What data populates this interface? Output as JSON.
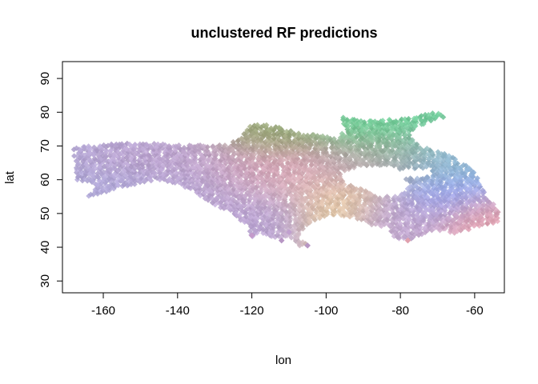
{
  "chart_data": {
    "type": "scatter",
    "title": "unclustered RF predictions",
    "xlabel": "lon",
    "ylabel": "lat",
    "xlim": [
      -171,
      -52
    ],
    "ylim": [
      26.5,
      95
    ],
    "x_ticks": [
      -160,
      -140,
      -120,
      -100,
      -80,
      -60
    ],
    "y_ticks": [
      30,
      40,
      50,
      60,
      70,
      80,
      90
    ],
    "x_tick_labels": [
      "-160",
      "-140",
      "-120",
      "-100",
      "-80",
      "-60"
    ],
    "y_tick_labels": [
      "30",
      "40",
      "50",
      "60",
      "70",
      "80",
      "90"
    ],
    "grid": false,
    "legend": "none",
    "marker": "diamond",
    "regions": [
      {
        "lon": [
          -167,
          -128
        ],
        "lat": [
          60,
          70.5
        ],
        "color": "#a9a6d6"
      },
      {
        "lon": [
          -160,
          -135
        ],
        "lat": [
          63,
          69
        ],
        "color": "#c79ec8"
      },
      {
        "lon": [
          -165,
          -150
        ],
        "lat": [
          55,
          61
        ],
        "color": "#b0a8d8"
      },
      {
        "lon": [
          -150,
          -125
        ],
        "lat": [
          53,
          62
        ],
        "color": "#b8a4d4"
      },
      {
        "lon": [
          -128,
          -108
        ],
        "lat": [
          48,
          56
        ],
        "color": "#b9a3d2"
      },
      {
        "lon": [
          -135,
          -100
        ],
        "lat": [
          60,
          70
        ],
        "color": "#d9a1b4"
      },
      {
        "lon": [
          -125,
          -105
        ],
        "lat": [
          70,
          76
        ],
        "color": "#93a66e"
      },
      {
        "lon": [
          -120,
          -95
        ],
        "lat": [
          55,
          62
        ],
        "color": "#d9b0b8"
      },
      {
        "lon": [
          -105,
          -90
        ],
        "lat": [
          49,
          58
        ],
        "color": "#e8cf9c"
      },
      {
        "lon": [
          -100,
          -80
        ],
        "lat": [
          61,
          67
        ],
        "color": "#c2a3b6"
      },
      {
        "lon": [
          -100,
          -70
        ],
        "lat": [
          74,
          80
        ],
        "color": "#6dcc96"
      },
      {
        "lon": [
          -95,
          -75
        ],
        "lat": [
          65,
          72
        ],
        "color": "#8ab58c"
      },
      {
        "lon": [
          -80,
          -60
        ],
        "lat": [
          60,
          70
        ],
        "color": "#8fb8d8"
      },
      {
        "lon": [
          -75,
          -60
        ],
        "lat": [
          52,
          58
        ],
        "color": "#9aa4f0"
      },
      {
        "lon": [
          -90,
          -70
        ],
        "lat": [
          47,
          54
        ],
        "color": "#c0a6cf"
      },
      {
        "lon": [
          -65,
          -53
        ],
        "lat": [
          46,
          52
        ],
        "color": "#e0a0ad"
      }
    ],
    "outliers": [
      {
        "lon": -112,
        "lat": 42,
        "color": "#b796c4"
      },
      {
        "lon": -105,
        "lat": 40.5,
        "color": "#b796c4"
      },
      {
        "lon": -110,
        "lat": 44.5,
        "color": "#c0a0cf"
      },
      {
        "lon": -120,
        "lat": 43.5,
        "color": "#c49acb"
      },
      {
        "lon": -78,
        "lat": 42,
        "color": "#e0a0ad"
      }
    ]
  }
}
